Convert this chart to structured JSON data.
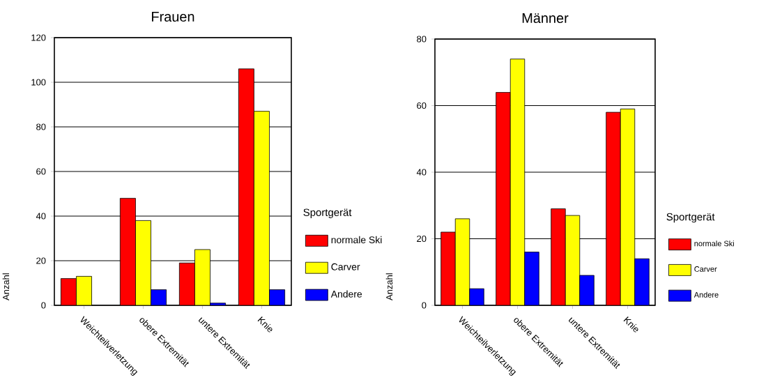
{
  "chart_data": [
    {
      "type": "bar",
      "title": "Frauen",
      "ylabel": "Anzahl",
      "legend_title": "Sportgerät",
      "categories": [
        "Weichteilverletzung",
        "obere Extremität",
        "untere Extremität",
        "Knie"
      ],
      "series": [
        {
          "name": "normale Ski",
          "color": "#ff0000",
          "values": [
            12,
            48,
            19,
            106
          ]
        },
        {
          "name": "Carver",
          "color": "#ffff00",
          "values": [
            13,
            38,
            25,
            87
          ]
        },
        {
          "name": "Andere",
          "color": "#0000ff",
          "values": [
            null,
            7,
            1,
            7
          ]
        }
      ],
      "ylim": [
        0,
        120
      ],
      "yticks": [
        0,
        20,
        40,
        60,
        80,
        100,
        120
      ],
      "grid": "y",
      "legend": "right"
    },
    {
      "type": "bar",
      "title": "Männer",
      "ylabel": "Anzahl",
      "legend_title": "Sportgerät",
      "categories": [
        "Weichteilverletzung",
        "obere Extremität",
        "untere Extremität",
        "Knie"
      ],
      "series": [
        {
          "name": "normale Ski",
          "color": "#ff0000",
          "values": [
            22,
            64,
            29,
            58
          ]
        },
        {
          "name": "Carver",
          "color": "#ffff00",
          "values": [
            26,
            74,
            27,
            59
          ]
        },
        {
          "name": "Andere",
          "color": "#0000ff",
          "values": [
            5,
            16,
            9,
            14
          ]
        }
      ],
      "ylim": [
        0,
        80
      ],
      "yticks": [
        0,
        20,
        40,
        60,
        80
      ],
      "grid": "y",
      "legend": "right"
    }
  ]
}
